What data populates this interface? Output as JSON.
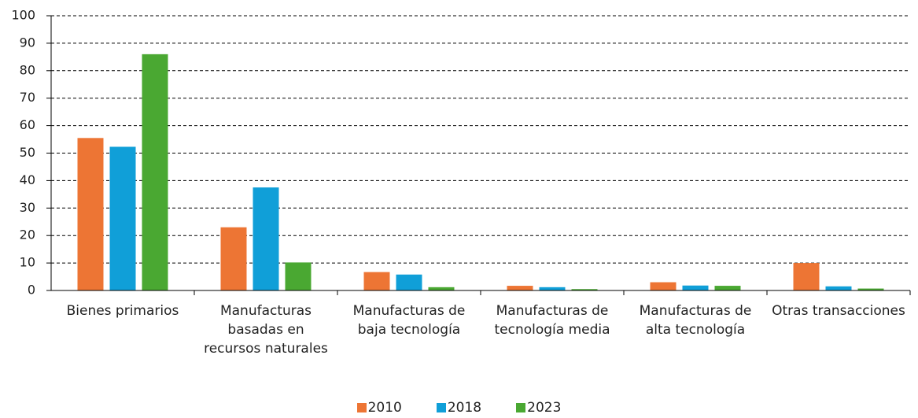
{
  "chart_data": {
    "type": "bar",
    "categories": [
      "Bienes primarios",
      "Manufacturas basadas en recursos naturales",
      "Manufacturas de baja tecnología",
      "Manufacturas de tecnología media",
      "Manufacturas de alta tecnología",
      "Otras transacciones"
    ],
    "series": [
      {
        "name": "2010",
        "color": "#ed7534",
        "values": [
          55.5,
          23,
          6.7,
          1.7,
          3,
          10
        ]
      },
      {
        "name": "2018",
        "color": "#109fd8",
        "values": [
          52.3,
          37.5,
          5.8,
          1.2,
          1.8,
          1.5
        ]
      },
      {
        "name": "2023",
        "color": "#4aa832",
        "values": [
          86,
          10.2,
          1.2,
          0.5,
          1.7,
          0.7
        ]
      }
    ],
    "ylim": [
      0,
      100
    ],
    "yticks": [
      0,
      10,
      20,
      30,
      40,
      50,
      60,
      70,
      80,
      90,
      100
    ],
    "grid": true,
    "legend": "bottom"
  }
}
